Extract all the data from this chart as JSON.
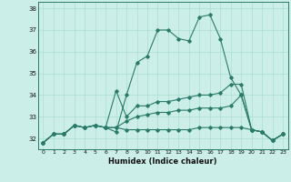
{
  "xlabel": "Humidex (Indice chaleur)",
  "bg_color": "#cceee8",
  "grid_color": "#aaddcc",
  "line_color": "#2a7a6a",
  "xlim": [
    -0.5,
    23.5
  ],
  "ylim": [
    31.5,
    38.3
  ],
  "yticks": [
    32,
    33,
    34,
    35,
    36,
    37,
    38
  ],
  "xticks": [
    0,
    1,
    2,
    3,
    4,
    5,
    6,
    7,
    8,
    9,
    10,
    11,
    12,
    13,
    14,
    15,
    16,
    17,
    18,
    19,
    20,
    21,
    22,
    23
  ],
  "series": [
    [
      31.8,
      32.2,
      32.2,
      32.6,
      32.5,
      32.6,
      32.5,
      32.3,
      34.0,
      35.5,
      35.8,
      37.0,
      37.0,
      36.6,
      36.5,
      37.6,
      37.7,
      36.6,
      34.8,
      34.0,
      32.4,
      32.3,
      31.9,
      32.2
    ],
    [
      31.8,
      32.2,
      32.2,
      32.6,
      32.5,
      32.6,
      32.5,
      34.2,
      33.0,
      33.5,
      33.5,
      33.7,
      33.7,
      33.8,
      33.9,
      34.0,
      34.0,
      34.1,
      34.5,
      34.5,
      32.4,
      32.3,
      31.9,
      32.2
    ],
    [
      31.8,
      32.2,
      32.2,
      32.6,
      32.5,
      32.6,
      32.5,
      32.5,
      32.8,
      33.0,
      33.1,
      33.2,
      33.2,
      33.3,
      33.3,
      33.4,
      33.4,
      33.4,
      33.5,
      34.0,
      32.4,
      32.3,
      31.9,
      32.2
    ],
    [
      31.8,
      32.2,
      32.2,
      32.6,
      32.5,
      32.6,
      32.5,
      32.5,
      32.4,
      32.4,
      32.4,
      32.4,
      32.4,
      32.4,
      32.4,
      32.5,
      32.5,
      32.5,
      32.5,
      32.5,
      32.4,
      32.3,
      31.9,
      32.2
    ]
  ]
}
